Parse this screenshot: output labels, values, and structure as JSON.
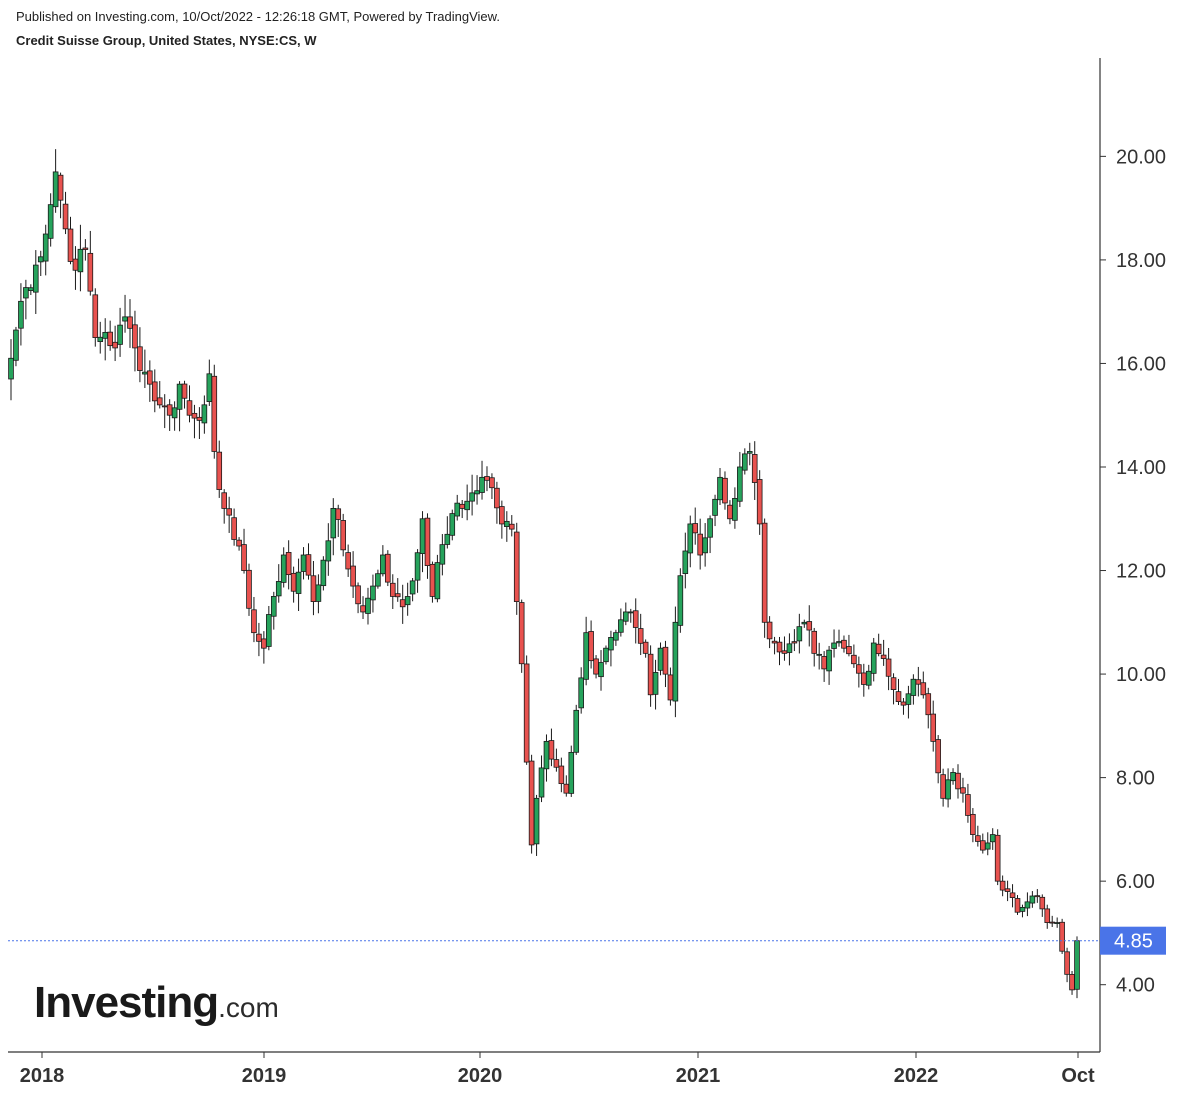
{
  "header": {
    "published": "Published on Investing.com, 10/Oct/2022 - 12:26:18 GMT, Powered by TradingView.",
    "subtitle": "Credit Suisse Group, United States, NYSE:CS, W"
  },
  "logo": {
    "main": "Investing",
    "suffix": ".com"
  },
  "colors": {
    "up": "#26a35c",
    "down": "#e8524f",
    "wick": "#1a1a1a",
    "last_price": "#4a74e8",
    "axis": "#333333"
  },
  "chart_data": {
    "type": "candlestick",
    "interval": "W",
    "ylim": [
      2.7,
      21.9
    ],
    "yticks": [
      4,
      6,
      8,
      10,
      12,
      14,
      16,
      18,
      20
    ],
    "ytick_labels": [
      "4.00",
      "6.00",
      "8.00",
      "10.00",
      "12.00",
      "14.00",
      "16.00",
      "18.00",
      "20.00"
    ],
    "xticks": [
      "2018",
      "2019",
      "2020",
      "2021",
      "2022",
      "Oct"
    ],
    "last_price": 4.85,
    "last_price_label": "4.85",
    "anchors": [
      {
        "t": 0,
        "p": 16.1
      },
      {
        "t": 2,
        "p": 17.2
      },
      {
        "t": 5,
        "p": 17.9
      },
      {
        "t": 7,
        "p": 18.5
      },
      {
        "t": 9,
        "p": 19.7
      },
      {
        "t": 11,
        "p": 18.6
      },
      {
        "t": 13,
        "p": 17.8
      },
      {
        "t": 15,
        "p": 18.2
      },
      {
        "t": 17,
        "p": 16.5
      },
      {
        "t": 19,
        "p": 16.6
      },
      {
        "t": 21,
        "p": 16.3
      },
      {
        "t": 23,
        "p": 16.9
      },
      {
        "t": 25,
        "p": 16.3
      },
      {
        "t": 28,
        "p": 15.6
      },
      {
        "t": 30,
        "p": 15.2
      },
      {
        "t": 32,
        "p": 15.0
      },
      {
        "t": 34,
        "p": 15.6
      },
      {
        "t": 36,
        "p": 15.0
      },
      {
        "t": 38,
        "p": 14.9
      },
      {
        "t": 40,
        "p": 15.8
      },
      {
        "t": 41,
        "p": 14.3
      },
      {
        "t": 43,
        "p": 13.2
      },
      {
        "t": 45,
        "p": 12.6
      },
      {
        "t": 47,
        "p": 12.0
      },
      {
        "t": 49,
        "p": 10.8
      },
      {
        "t": 51,
        "p": 10.5
      },
      {
        "t": 53,
        "p": 11.5
      },
      {
        "t": 55,
        "p": 12.3
      },
      {
        "t": 57,
        "p": 11.6
      },
      {
        "t": 59,
        "p": 12.3
      },
      {
        "t": 61,
        "p": 11.4
      },
      {
        "t": 63,
        "p": 12.2
      },
      {
        "t": 65,
        "p": 13.2
      },
      {
        "t": 67,
        "p": 12.4
      },
      {
        "t": 69,
        "p": 11.7
      },
      {
        "t": 71,
        "p": 11.2
      },
      {
        "t": 73,
        "p": 11.7
      },
      {
        "t": 75,
        "p": 12.3
      },
      {
        "t": 77,
        "p": 11.5
      },
      {
        "t": 79,
        "p": 11.3
      },
      {
        "t": 81,
        "p": 11.8
      },
      {
        "t": 83,
        "p": 13.0
      },
      {
        "t": 85,
        "p": 11.5
      },
      {
        "t": 87,
        "p": 12.5
      },
      {
        "t": 89,
        "p": 13.1
      },
      {
        "t": 91,
        "p": 13.2
      },
      {
        "t": 93,
        "p": 13.5
      },
      {
        "t": 95,
        "p": 13.8
      },
      {
        "t": 97,
        "p": 13.6
      },
      {
        "t": 99,
        "p": 12.9
      },
      {
        "t": 101,
        "p": 12.8
      },
      {
        "t": 102,
        "p": 11.4
      },
      {
        "t": 103,
        "p": 10.2
      },
      {
        "t": 104,
        "p": 8.3
      },
      {
        "t": 105,
        "p": 6.7
      },
      {
        "t": 106,
        "p": 7.6
      },
      {
        "t": 108,
        "p": 8.7
      },
      {
        "t": 110,
        "p": 8.2
      },
      {
        "t": 112,
        "p": 7.7
      },
      {
        "t": 114,
        "p": 9.3
      },
      {
        "t": 116,
        "p": 10.8
      },
      {
        "t": 118,
        "p": 10.0
      },
      {
        "t": 120,
        "p": 10.5
      },
      {
        "t": 122,
        "p": 10.8
      },
      {
        "t": 124,
        "p": 11.2
      },
      {
        "t": 126,
        "p": 10.9
      },
      {
        "t": 128,
        "p": 10.4
      },
      {
        "t": 129,
        "p": 9.6
      },
      {
        "t": 131,
        "p": 10.5
      },
      {
        "t": 133,
        "p": 9.5
      },
      {
        "t": 134,
        "p": 11.0
      },
      {
        "t": 135,
        "p": 11.9
      },
      {
        "t": 137,
        "p": 12.9
      },
      {
        "t": 139,
        "p": 12.3
      },
      {
        "t": 141,
        "p": 13.0
      },
      {
        "t": 143,
        "p": 13.8
      },
      {
        "t": 145,
        "p": 13.0
      },
      {
        "t": 147,
        "p": 14.0
      },
      {
        "t": 149,
        "p": 14.3
      },
      {
        "t": 150,
        "p": 13.7
      },
      {
        "t": 151,
        "p": 12.9
      },
      {
        "t": 152,
        "p": 11.0
      },
      {
        "t": 154,
        "p": 10.6
      },
      {
        "t": 156,
        "p": 10.4
      },
      {
        "t": 158,
        "p": 10.6
      },
      {
        "t": 160,
        "p": 11.0
      },
      {
        "t": 162,
        "p": 10.4
      },
      {
        "t": 164,
        "p": 10.1
      },
      {
        "t": 166,
        "p": 10.6
      },
      {
        "t": 168,
        "p": 10.5
      },
      {
        "t": 170,
        "p": 10.2
      },
      {
        "t": 172,
        "p": 9.8
      },
      {
        "t": 174,
        "p": 10.6
      },
      {
        "t": 176,
        "p": 10.3
      },
      {
        "t": 178,
        "p": 9.7
      },
      {
        "t": 180,
        "p": 9.4
      },
      {
        "t": 182,
        "p": 9.9
      },
      {
        "t": 184,
        "p": 9.6
      },
      {
        "t": 186,
        "p": 8.7
      },
      {
        "t": 188,
        "p": 7.6
      },
      {
        "t": 190,
        "p": 8.1
      },
      {
        "t": 192,
        "p": 7.7
      },
      {
        "t": 194,
        "p": 6.9
      },
      {
        "t": 196,
        "p": 6.6
      },
      {
        "t": 198,
        "p": 6.9
      },
      {
        "t": 199,
        "p": 6.0
      },
      {
        "t": 201,
        "p": 5.8
      },
      {
        "t": 203,
        "p": 5.4
      },
      {
        "t": 205,
        "p": 5.6
      },
      {
        "t": 207,
        "p": 5.7
      },
      {
        "t": 209,
        "p": 5.2
      },
      {
        "t": 211,
        "p": 5.2
      },
      {
        "t": 213,
        "p": 4.2
      },
      {
        "t": 214,
        "p": 3.9
      },
      {
        "t": 215,
        "p": 4.85
      }
    ]
  }
}
